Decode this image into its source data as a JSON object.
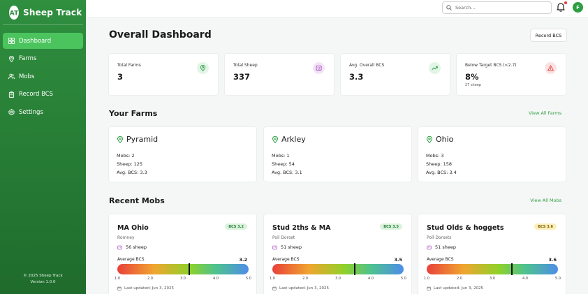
{
  "brand": {
    "name": "Sheep Track",
    "logo_letters": "AT"
  },
  "nav": [
    {
      "label": "Dashboard",
      "icon": "grid-icon",
      "active": true
    },
    {
      "label": "Farms",
      "icon": "map-pin-icon",
      "active": false
    },
    {
      "label": "Mobs",
      "icon": "users-icon",
      "active": false
    },
    {
      "label": "Record BCS",
      "icon": "clipboard-icon",
      "active": false
    },
    {
      "label": "Settings",
      "icon": "gear-icon",
      "active": false
    }
  ],
  "footer": {
    "copyright": "© 2025 Sheep Track",
    "version": "Version 1.0.0"
  },
  "topbar": {
    "search_placeholder": "Search...",
    "avatar_initial": "F"
  },
  "page": {
    "title": "Overall Dashboard",
    "record_button": "Record BCS"
  },
  "stats": [
    {
      "label": "Total Farms",
      "value": "3",
      "sub": "",
      "icon": "map-pin-icon",
      "color": "#2e9e44"
    },
    {
      "label": "Total Sheep",
      "value": "337",
      "sub": "",
      "icon": "sheep-icon",
      "color": "#9b3fb5"
    },
    {
      "label": "Avg. Overall BCS",
      "value": "3.3",
      "sub": "",
      "icon": "trending-up-icon",
      "color": "#2e9e44"
    },
    {
      "label": "Below Target BCS (<2.7)",
      "value": "8%",
      "sub": "27 sheep",
      "icon": "alert-triangle-icon",
      "color": "#e53935"
    }
  ],
  "farms_section": {
    "title": "Your Farms",
    "view_all": "View All Farms"
  },
  "farms": [
    {
      "name": "Pyramid",
      "mobs": "Mobs: 2",
      "sheep": "Sheep: 125",
      "bcs": "Avg. BCS: 3.3"
    },
    {
      "name": "Arkley",
      "mobs": "Mobs: 1",
      "sheep": "Sheep: 54",
      "bcs": "Avg. BCS: 3.1"
    },
    {
      "name": "Ohio",
      "mobs": "Mobs: 3",
      "sheep": "Sheep: 158",
      "bcs": "Avg. BCS: 3.4"
    }
  ],
  "mobs_section": {
    "title": "Recent Mobs",
    "view_all": "View All Mobs"
  },
  "mobs": [
    {
      "name": "MA Ohio",
      "badge": "BCS 3.2",
      "badge_color": "green",
      "breed": "Romney",
      "sheep": "56 sheep",
      "avg_label": "Average BCS",
      "avg": "3.2",
      "bcs_value": 3.2,
      "updated": "Last updated: Jun 3, 2025"
    },
    {
      "name": "Stud 2ths & MA",
      "badge": "BCS 3.5",
      "badge_color": "green",
      "breed": "Poll Dorset",
      "sheep": "51 sheep",
      "avg_label": "Average BCS",
      "avg": "3.5",
      "bcs_value": 3.5,
      "updated": "Last updated: Jun 3, 2025"
    },
    {
      "name": "Stud Olds & hoggets",
      "badge": "BCS 3.6",
      "badge_color": "yellow",
      "breed": "Poll Dorsets",
      "sheep": "51 sheep",
      "avg_label": "Average BCS",
      "avg": "3.6",
      "bcs_value": 3.6,
      "updated": "Last updated: Jun 3, 2025"
    }
  ],
  "bcs_scale": {
    "min": 1.0,
    "max": 5.0,
    "ticks": [
      "1.0",
      "2.0",
      "3.0",
      "4.0",
      "5.0"
    ]
  }
}
